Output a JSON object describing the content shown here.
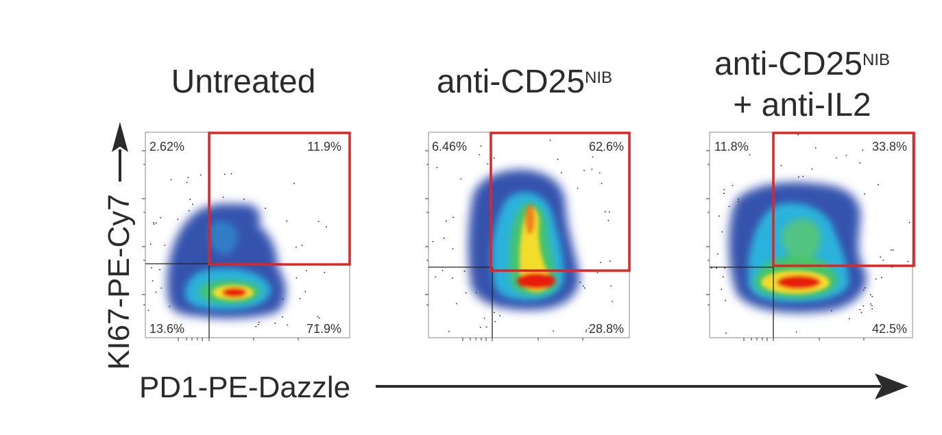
{
  "figure": {
    "y_axis_label": "KI67-PE-Cy7",
    "x_axis_label": "PD1-PE-Dazzle"
  },
  "colors": {
    "gate": "#e02424",
    "density_low": "#2d4fa8",
    "density_mid": "#33c08a",
    "density_high": "#e81d10",
    "quadrant_line": "#222222"
  },
  "chart_data": [
    {
      "type": "scatter",
      "title": "Untreated",
      "title_sup": "",
      "title_line2": "",
      "xlabel": "PD1-PE-Dazzle",
      "ylabel": "KI67-PE-Cy7",
      "quadrants": {
        "top_left": "2.62%",
        "top_right": "11.9%",
        "bottom_left": "13.6%",
        "bottom_right": "71.9%"
      },
      "gate": "top_right"
    },
    {
      "type": "scatter",
      "title": "anti-CD25",
      "title_sup": "NIB",
      "title_line2": "",
      "xlabel": "PD1-PE-Dazzle",
      "ylabel": "KI67-PE-Cy7",
      "quadrants": {
        "top_left": "6.46%",
        "top_right": "62.6%",
        "bottom_left": "",
        "bottom_right": "28.8%"
      },
      "gate": "top_right"
    },
    {
      "type": "scatter",
      "title": "anti-CD25",
      "title_sup": "NIB",
      "title_line2": "+ anti-IL2",
      "xlabel": "PD1-PE-Dazzle",
      "ylabel": "KI67-PE-Cy7",
      "quadrants": {
        "top_left": "11.8%",
        "top_right": "33.8%",
        "bottom_left": "",
        "bottom_right": "42.5%"
      },
      "gate": "top_right"
    }
  ]
}
